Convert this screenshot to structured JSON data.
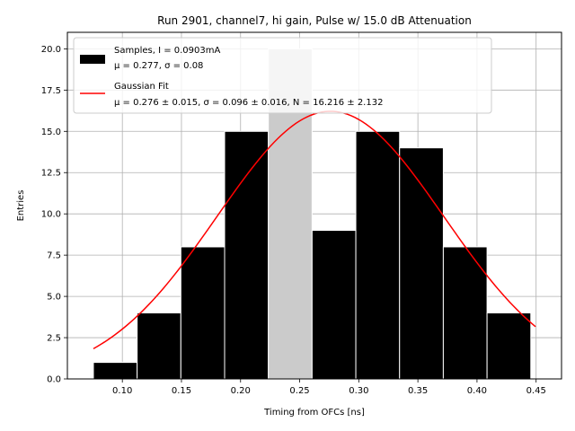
{
  "chart_data": {
    "type": "bar",
    "title": "Run 2901, channel7, hi gain, Pulse w/ 15.0 dB Attenuation",
    "xlabel": "Timing from OFCs [ns]",
    "ylabel": "Entries",
    "xlim": [
      0.0535,
      0.4715
    ],
    "ylim": [
      0,
      21
    ],
    "xticks": [
      0.1,
      0.15,
      0.2,
      0.25,
      0.3,
      0.35,
      0.4,
      0.45
    ],
    "xtick_labels": [
      "0.10",
      "0.15",
      "0.20",
      "0.25",
      "0.30",
      "0.35",
      "0.40",
      "0.45"
    ],
    "yticks": [
      0,
      2.5,
      5,
      7.5,
      10,
      12.5,
      15,
      17.5,
      20
    ],
    "ytick_labels": [
      "0.0",
      "2.5",
      "5.0",
      "7.5",
      "10.0",
      "12.5",
      "15.0",
      "17.5",
      "20.0"
    ],
    "grid": true,
    "legend_position": "top-left",
    "bin_edges": [
      0.0755,
      0.1125,
      0.1495,
      0.1865,
      0.2235,
      0.2605,
      0.2975,
      0.3345,
      0.3715,
      0.4085,
      0.4455
    ],
    "series": [
      {
        "name": "Samples, I = 0.0903mA",
        "stats_label": "μ = 0.277, σ = 0.08",
        "kind": "histogram",
        "color": "#000000",
        "values": [
          1,
          4,
          8,
          15,
          20,
          9,
          15,
          14,
          8,
          4
        ],
        "bar_colors": [
          "#000000",
          "#000000",
          "#000000",
          "#000000",
          "#cbcbcb",
          "#000000",
          "#000000",
          "#000000",
          "#000000",
          "#000000"
        ]
      },
      {
        "name": "Gaussian Fit",
        "stats_label": "μ = 0.276 ± 0.015, σ = 0.096 ± 0.016, N = 16.216 ± 2.132",
        "kind": "line",
        "color": "#ff0000",
        "mu": 0.276,
        "sigma": 0.096,
        "amplitude": 16.216,
        "x_range": [
          0.0755,
          0.4495
        ]
      }
    ]
  }
}
